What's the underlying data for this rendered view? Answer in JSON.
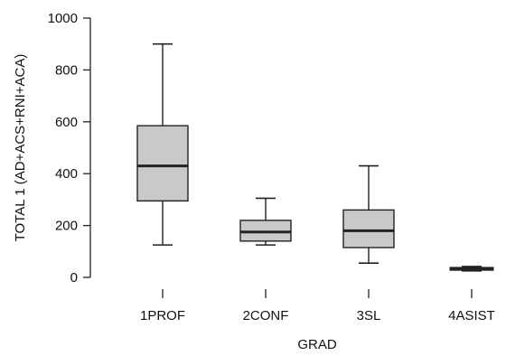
{
  "chart_data": {
    "type": "box",
    "xlabel": "GRAD",
    "ylabel": "TOTAL 1 (AD+ACS+RNI+ACA)",
    "ylim": [
      0,
      1000
    ],
    "yticks": [
      "0",
      "200",
      "400",
      "600",
      "800",
      "1000"
    ],
    "categories": [
      "1PROF",
      "2CONF",
      "3SL",
      "4ASIST"
    ],
    "boxes": [
      {
        "category": "1PROF",
        "min": 125,
        "q1": 295,
        "median": 430,
        "q3": 585,
        "max": 900
      },
      {
        "category": "2CONF",
        "min": 125,
        "q1": 140,
        "median": 175,
        "q3": 220,
        "max": 305
      },
      {
        "category": "3SL",
        "min": 55,
        "q1": 115,
        "median": 180,
        "q3": 260,
        "max": 430
      },
      {
        "category": "4ASIST",
        "min": 25,
        "q1": 28,
        "median": 33,
        "q3": 38,
        "max": 42
      }
    ],
    "colors": {
      "box_fill": "#c9c9c9",
      "stroke": "#222222"
    },
    "grid": false,
    "legend": "none"
  }
}
